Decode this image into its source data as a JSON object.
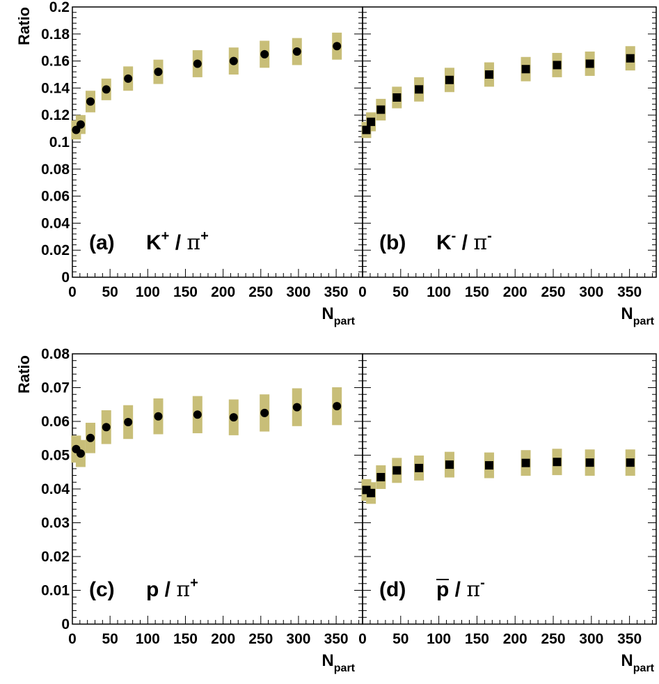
{
  "colors": {
    "band": "#c8be78",
    "marker": "#000000",
    "frame": "#000000"
  },
  "shared": {
    "ylabel": "Ratio",
    "xlabel_main": "N",
    "xlabel_sub": "part",
    "x_ticks": [
      "0",
      "50",
      "100",
      "150",
      "200",
      "250",
      "300",
      "350"
    ]
  },
  "chart_data": [
    {
      "panel": "(a)",
      "type": "scatter",
      "marker": "circle",
      "label_main": "K",
      "label_sup": "+",
      "label_sep": "/",
      "label_pi": "π",
      "label_pi_sup": "+",
      "xlim": [
        0,
        385
      ],
      "ylim": [
        0,
        0.2
      ],
      "y_ticks": [
        "0",
        "0.02",
        "0.04",
        "0.06",
        "0.08",
        "0.1",
        "0.12",
        "0.14",
        "0.16",
        "0.18",
        "0.2"
      ],
      "x": [
        5,
        11,
        24,
        45,
        74,
        114,
        166,
        214,
        255,
        298,
        351
      ],
      "y": [
        0.109,
        0.113,
        0.13,
        0.139,
        0.147,
        0.152,
        0.158,
        0.16,
        0.165,
        0.167,
        0.171
      ],
      "sys_err": [
        0.007,
        0.007,
        0.008,
        0.008,
        0.009,
        0.009,
        0.01,
        0.01,
        0.01,
        0.01,
        0.01
      ]
    },
    {
      "panel": "(b)",
      "type": "scatter",
      "marker": "square",
      "label_main": "K",
      "label_sup": "-",
      "label_sep": "/",
      "label_pi": "π",
      "label_pi_sup": "-",
      "xlim": [
        0,
        385
      ],
      "ylim": [
        0,
        0.2
      ],
      "y_ticks": [],
      "x": [
        5,
        11,
        24,
        45,
        74,
        114,
        166,
        214,
        255,
        298,
        351
      ],
      "y": [
        0.109,
        0.115,
        0.124,
        0.133,
        0.139,
        0.146,
        0.15,
        0.154,
        0.157,
        0.158,
        0.162
      ],
      "sys_err": [
        0.006,
        0.007,
        0.008,
        0.008,
        0.009,
        0.009,
        0.009,
        0.009,
        0.009,
        0.009,
        0.009
      ]
    },
    {
      "panel": "(c)",
      "type": "scatter",
      "marker": "circle",
      "label_main": "p",
      "label_sup": "",
      "label_sep": "/",
      "label_pi": "π",
      "label_pi_sup": "+",
      "xlim": [
        0,
        385
      ],
      "ylim": [
        0,
        0.08
      ],
      "y_ticks": [
        "0",
        "0.01",
        "0.02",
        "0.03",
        "0.04",
        "0.05",
        "0.06",
        "0.07",
        "0.08"
      ],
      "x": [
        5,
        11,
        24,
        45,
        74,
        114,
        166,
        214,
        255,
        298,
        351
      ],
      "y": [
        0.0518,
        0.0505,
        0.0551,
        0.0583,
        0.0598,
        0.0615,
        0.062,
        0.0612,
        0.0625,
        0.0642,
        0.0645
      ],
      "sys_err": [
        0.004,
        0.004,
        0.0045,
        0.005,
        0.005,
        0.0053,
        0.0055,
        0.0053,
        0.0055,
        0.0056,
        0.0056
      ]
    },
    {
      "panel": "(d)",
      "type": "scatter",
      "marker": "square",
      "label_main": "p",
      "label_sup": "",
      "label_overline": true,
      "label_sep": "/",
      "label_pi": "π",
      "label_pi_sup": "-",
      "xlim": [
        0,
        385
      ],
      "ylim": [
        0,
        0.08
      ],
      "y_ticks": [],
      "x": [
        5,
        11,
        24,
        45,
        74,
        114,
        166,
        214,
        255,
        298,
        351
      ],
      "y": [
        0.0397,
        0.0388,
        0.0435,
        0.0455,
        0.0462,
        0.0472,
        0.047,
        0.0477,
        0.048,
        0.0478,
        0.0478
      ],
      "sys_err": [
        0.0032,
        0.0032,
        0.0035,
        0.0037,
        0.0037,
        0.0038,
        0.0038,
        0.0038,
        0.0039,
        0.0039,
        0.0039
      ]
    }
  ]
}
